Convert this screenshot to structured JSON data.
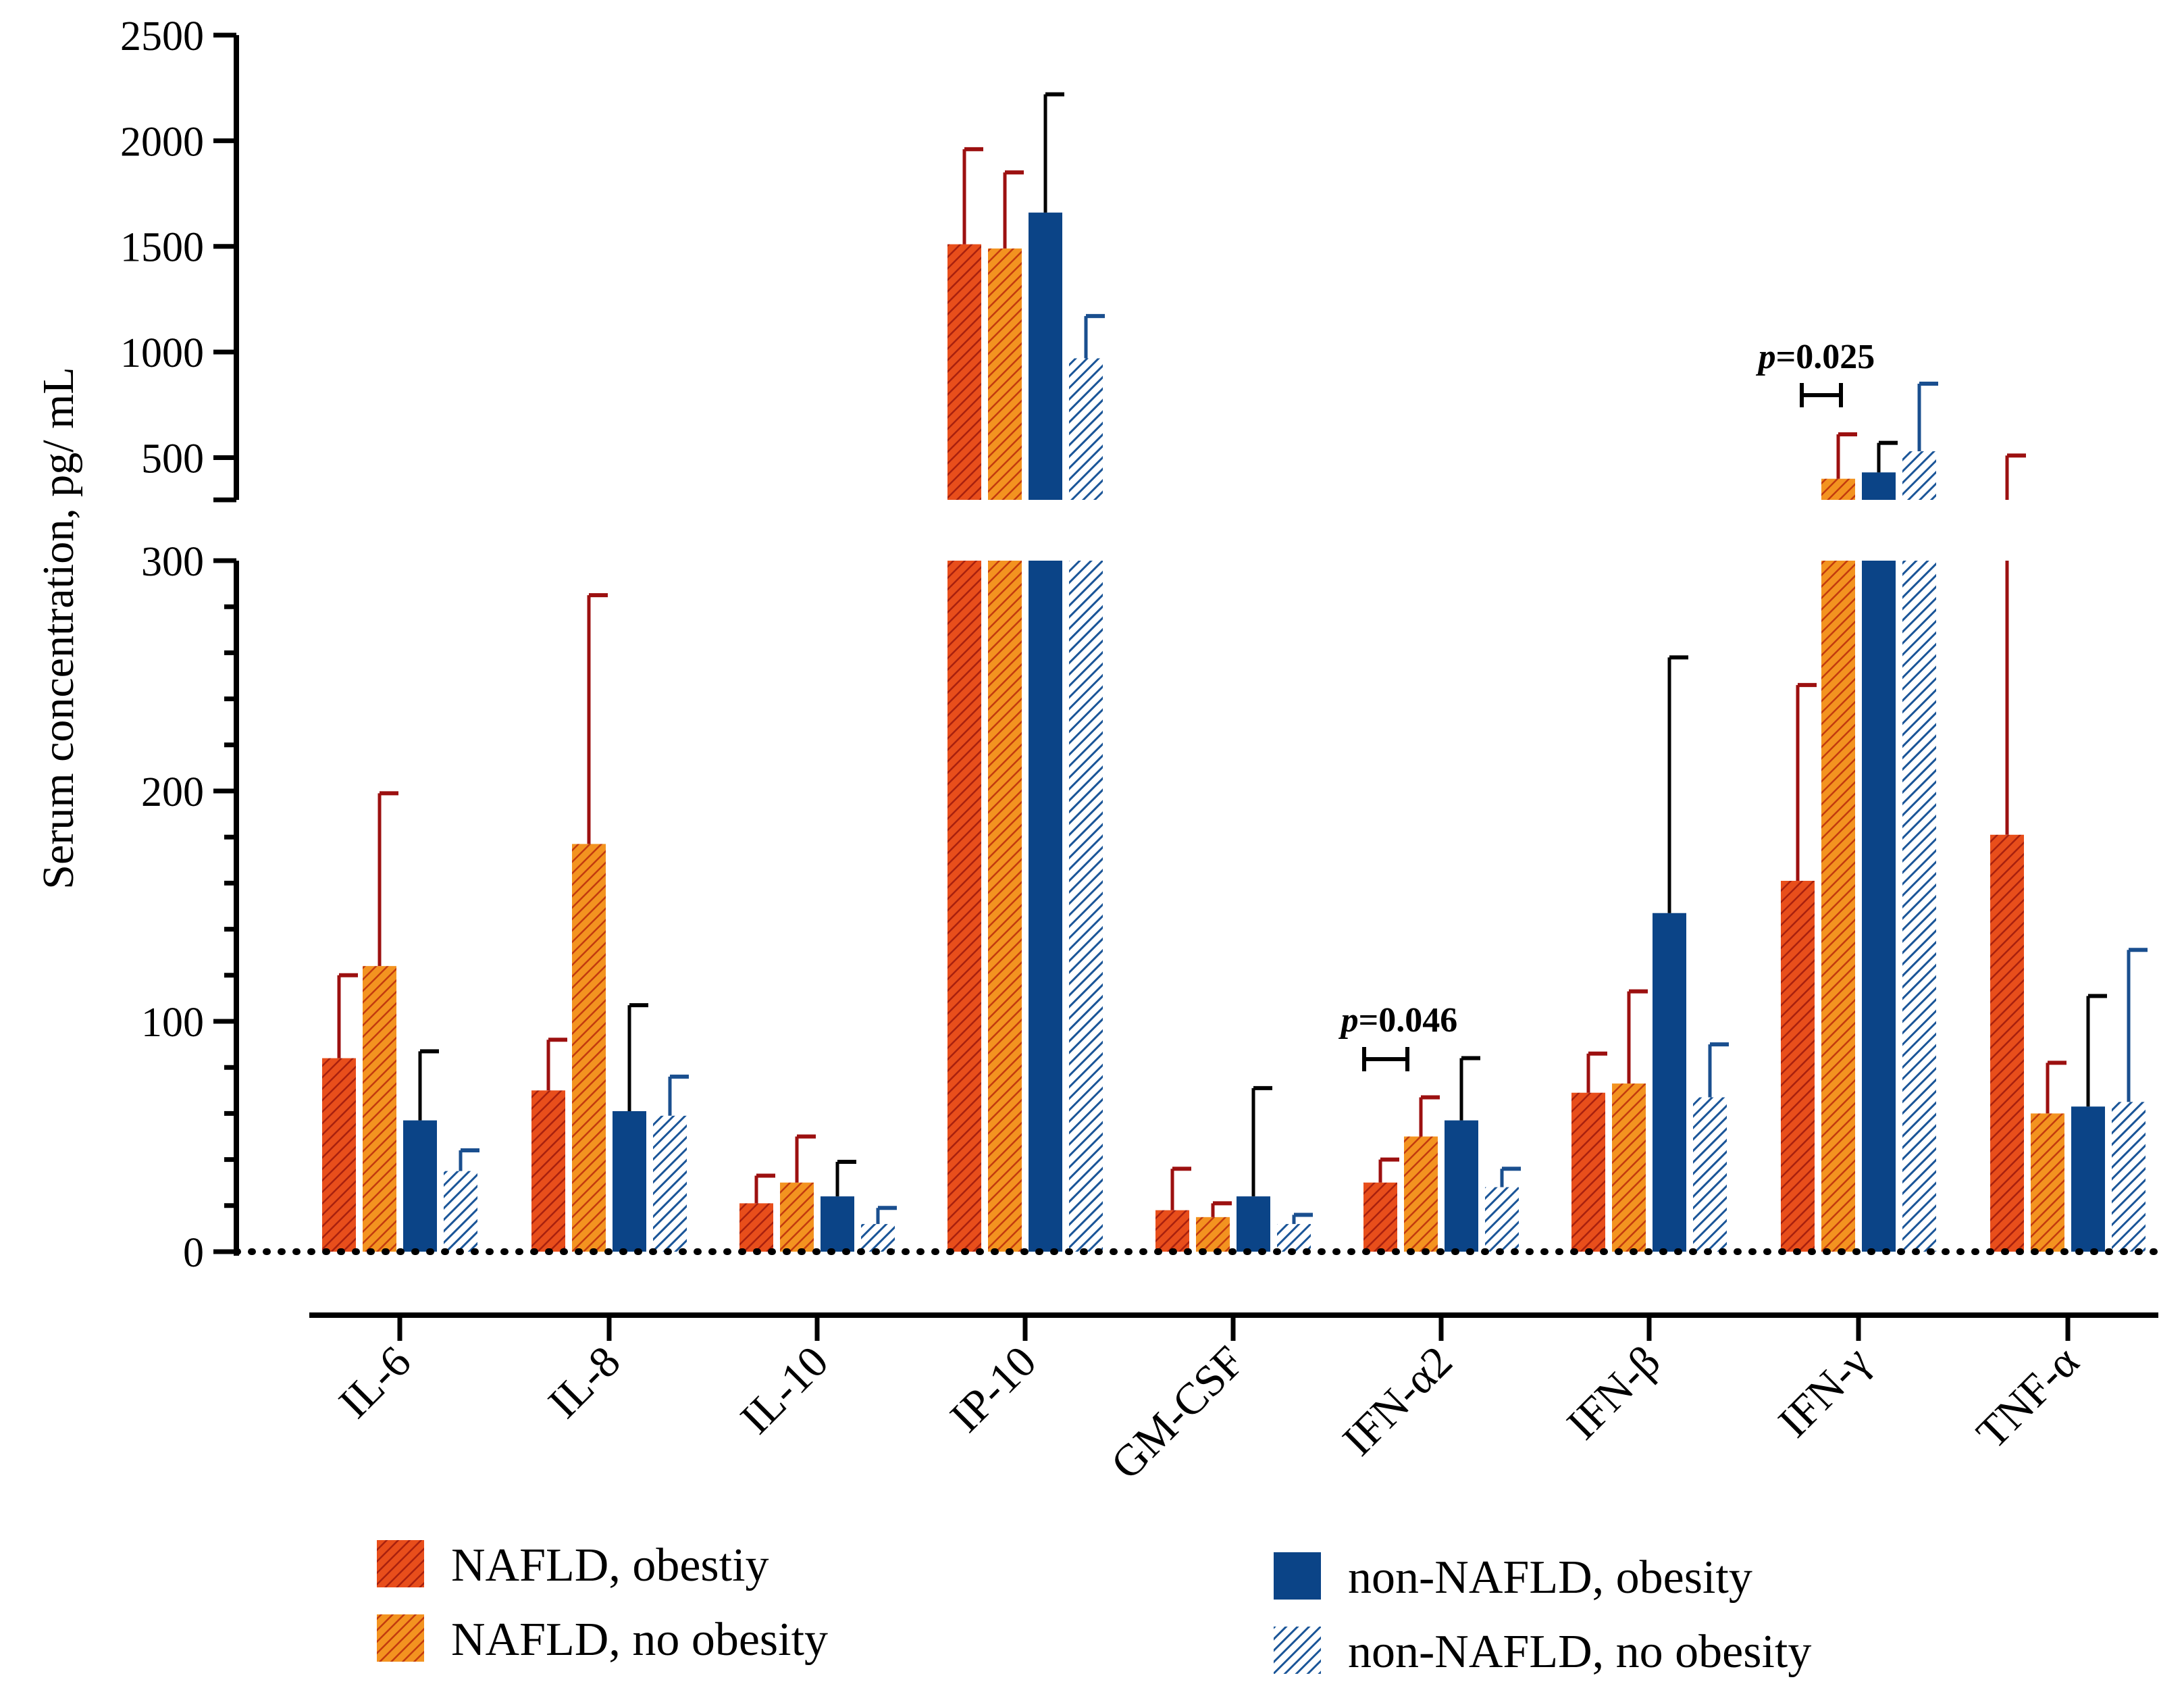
{
  "chart_data": {
    "type": "bar",
    "ylabel": "Serum concentration, pg/ mL",
    "ylim_lower": [
      0,
      300
    ],
    "ylim_upper": [
      300,
      2500
    ],
    "yticks_lower": [
      "0",
      "100",
      "200",
      "300"
    ],
    "yticks_upper": [
      "500",
      "1000",
      "1500",
      "2000",
      "2500"
    ],
    "categories": [
      "IL-6",
      "IL-8",
      "IL-10",
      "IP-10",
      "GM-CSF",
      "IFN-α2",
      "IFN-β",
      "IFN-γ",
      "TNF-α"
    ],
    "series": [
      {
        "name": "NAFLD, obestiy",
        "values": [
          84,
          70,
          21,
          1510,
          18,
          30,
          69,
          161,
          181
        ],
        "errors": [
          120,
          92,
          33,
          1960,
          36,
          40,
          86,
          246,
          510
        ],
        "color": "#e84e1b",
        "hatch": "#a8200e"
      },
      {
        "name": "NAFLD, no obesity",
        "values": [
          124,
          177,
          30,
          1490,
          15,
          50,
          73,
          400,
          60
        ],
        "errors": [
          199,
          285,
          50,
          1850,
          21,
          67,
          113,
          610,
          82
        ],
        "color": "#f07a1a",
        "hatch": "#b43a10"
      },
      {
        "name": "non-NAFLD, obesity",
        "values": [
          57,
          61,
          24,
          1660,
          24,
          57,
          147,
          430,
          63
        ],
        "errors": [
          87,
          107,
          39,
          2220,
          71,
          84,
          258,
          570,
          111
        ],
        "color": "#0b4487",
        "hatch": ""
      },
      {
        "name": "non-NAFLD, no obesity",
        "values": [
          35,
          59,
          12,
          970,
          12,
          28,
          67,
          530,
          65
        ],
        "errors": [
          44,
          76,
          19,
          1170,
          16,
          36,
          90,
          850,
          131
        ],
        "color": "#ffffff",
        "hatch": "#1a5598"
      }
    ],
    "error_colors": [
      "#9c1010",
      "#9c1010",
      "#000000",
      "#1a4f8f"
    ],
    "annotations": [
      {
        "text": "p=0.046",
        "italic_part": "p",
        "category": "IFN-α2"
      },
      {
        "text": "p=0.025",
        "italic_part": "p",
        "category": "IFN-γ"
      }
    ]
  }
}
